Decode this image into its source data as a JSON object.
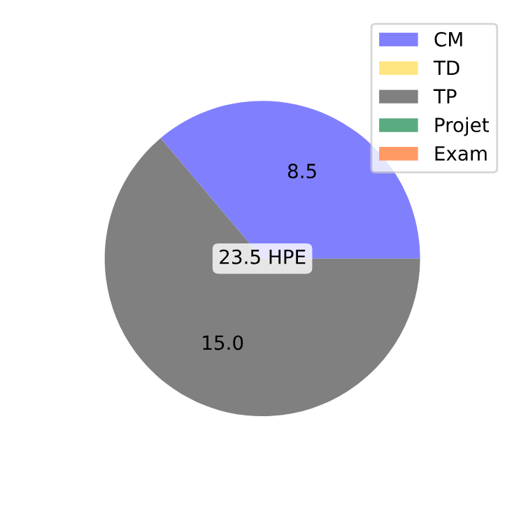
{
  "chart_data": {
    "type": "pie",
    "categories": [
      "CM",
      "TD",
      "TP",
      "Projet",
      "Exam"
    ],
    "values": [
      8.5,
      0,
      15.0,
      0,
      0
    ],
    "colors": [
      "#8080ff",
      "#ffe680",
      "#808080",
      "#5aab80",
      "#ff9966"
    ],
    "value_labels": [
      "8.5",
      null,
      "15.0",
      null,
      null
    ],
    "annotations": [
      "23.5 HPE"
    ],
    "legend": "top right"
  }
}
